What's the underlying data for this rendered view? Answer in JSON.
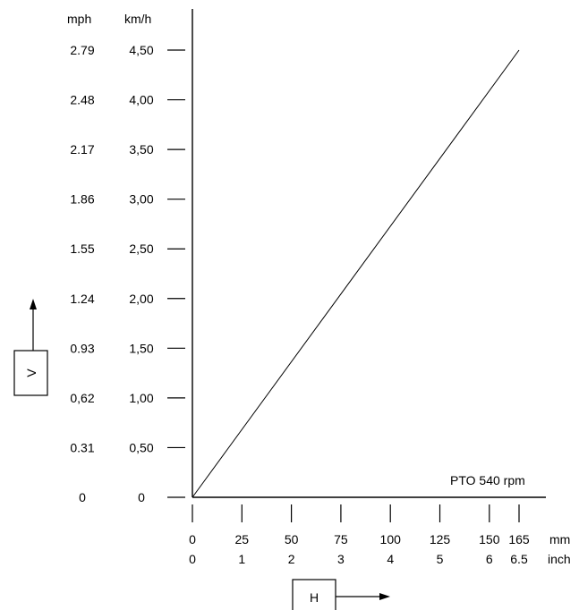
{
  "chart_data": {
    "type": "line",
    "annotation": "PTO 540 rpm",
    "y_units": {
      "primary": "km/h",
      "secondary": "mph"
    },
    "x_units": {
      "primary": "mm",
      "secondary": "inch"
    },
    "y_ticks": [
      {
        "kmh": "0",
        "mph": "0",
        "value": 0
      },
      {
        "kmh": "0,50",
        "mph": "0.31",
        "value": 0.5
      },
      {
        "kmh": "1,00",
        "mph": "0,62",
        "value": 1.0
      },
      {
        "kmh": "1,50",
        "mph": "0.93",
        "value": 1.5
      },
      {
        "kmh": "2,00",
        "mph": "1.24",
        "value": 2.0
      },
      {
        "kmh": "2,50",
        "mph": "1.55",
        "value": 2.5
      },
      {
        "kmh": "3,00",
        "mph": "1.86",
        "value": 3.0
      },
      {
        "kmh": "3,50",
        "mph": "2.17",
        "value": 3.5
      },
      {
        "kmh": "4,00",
        "mph": "2.48",
        "value": 4.0
      },
      {
        "kmh": "4,50",
        "mph": "2.79",
        "value": 4.5
      }
    ],
    "x_ticks": [
      {
        "mm": "0",
        "inch": "0",
        "value": 0
      },
      {
        "mm": "25",
        "inch": "1",
        "value": 25
      },
      {
        "mm": "50",
        "inch": "2",
        "value": 50
      },
      {
        "mm": "75",
        "inch": "3",
        "value": 75
      },
      {
        "mm": "100",
        "inch": "4",
        "value": 100
      },
      {
        "mm": "125",
        "inch": "5",
        "value": 125
      },
      {
        "mm": "150",
        "inch": "6",
        "value": 150
      },
      {
        "mm": "165",
        "inch": "6.5",
        "value": 165
      }
    ],
    "series": [
      {
        "x": [
          0,
          165
        ],
        "y": [
          0,
          4.5
        ]
      }
    ],
    "xlim": [
      0,
      165
    ],
    "ylim": [
      0,
      4.5
    ],
    "y_axis_label": "V",
    "x_axis_label": "H",
    "grid": false
  }
}
